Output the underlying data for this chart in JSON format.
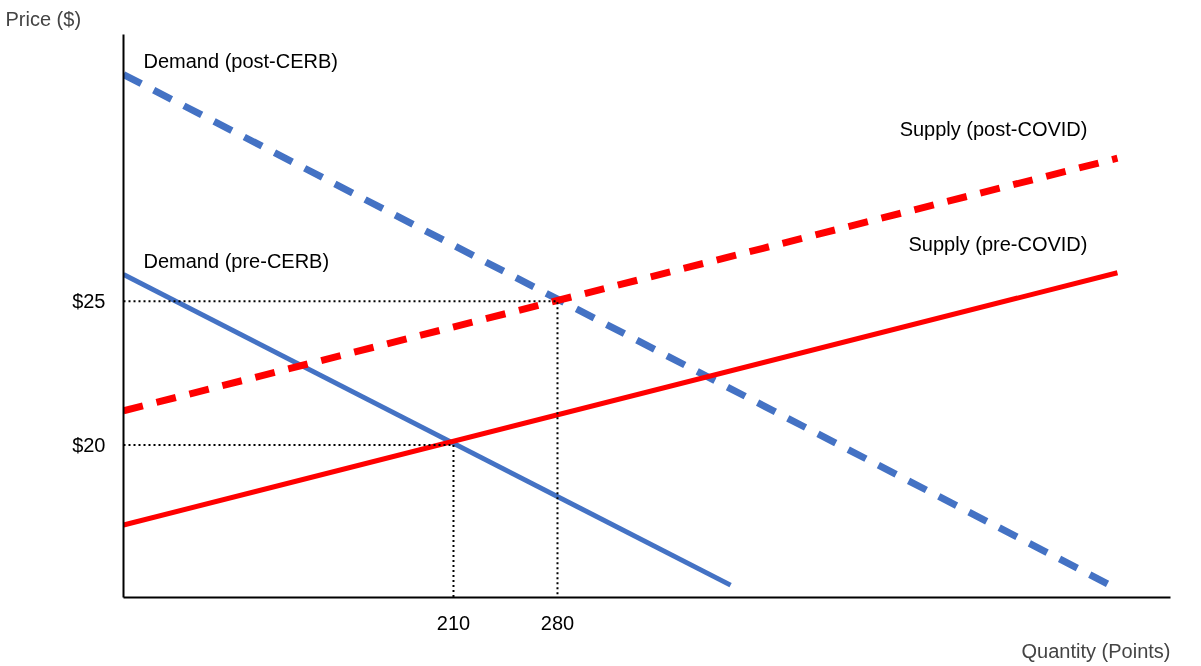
{
  "chart_data": {
    "type": "line",
    "xlabel": "Quantity (Points)",
    "ylabel": "Price ($)",
    "xlim": [
      -12.1,
      692.6
    ],
    "ylim": [
      14.7,
      34.27
    ],
    "xticks": [
      210,
      280
    ],
    "yticks": [
      {
        "value": 20,
        "label": "$20"
      },
      {
        "value": 25,
        "label": "$25"
      }
    ],
    "grid": false,
    "series": [
      {
        "name": "Demand (pre-CERB)",
        "color": "#4472c4",
        "line_style": "solid",
        "x": [
          -12.1,
          396.5
        ],
        "values": [
          25.93,
          15.13
        ]
      },
      {
        "name": "Demand  (post-CERB)",
        "color": "#4472c4",
        "line_style": "dashed",
        "x": [
          -12.1,
          654.2
        ],
        "values": [
          32.88,
          15.07
        ]
      },
      {
        "name": "Supply (pre-COVID)",
        "color": "#ff0000",
        "line_style": "solid",
        "x": [
          -12.1,
          656.9
        ],
        "values": [
          17.22,
          25.99
        ]
      },
      {
        "name": "Supply (post-COVID)",
        "color": "#ff0000",
        "line_style": "dashed",
        "x": [
          -12.1,
          656.9
        ],
        "values": [
          21.19,
          29.97
        ]
      },
      {
        "color": "#000000",
        "line_style": "dotted",
        "x": [
          -12.1,
          210,
          210
        ],
        "values": [
          20,
          20,
          14.7
        ]
      },
      {
        "color": "#000000",
        "line_style": "dotted",
        "x": [
          -12.1,
          280,
          280
        ],
        "values": [
          25,
          25,
          14.7
        ]
      }
    ]
  }
}
